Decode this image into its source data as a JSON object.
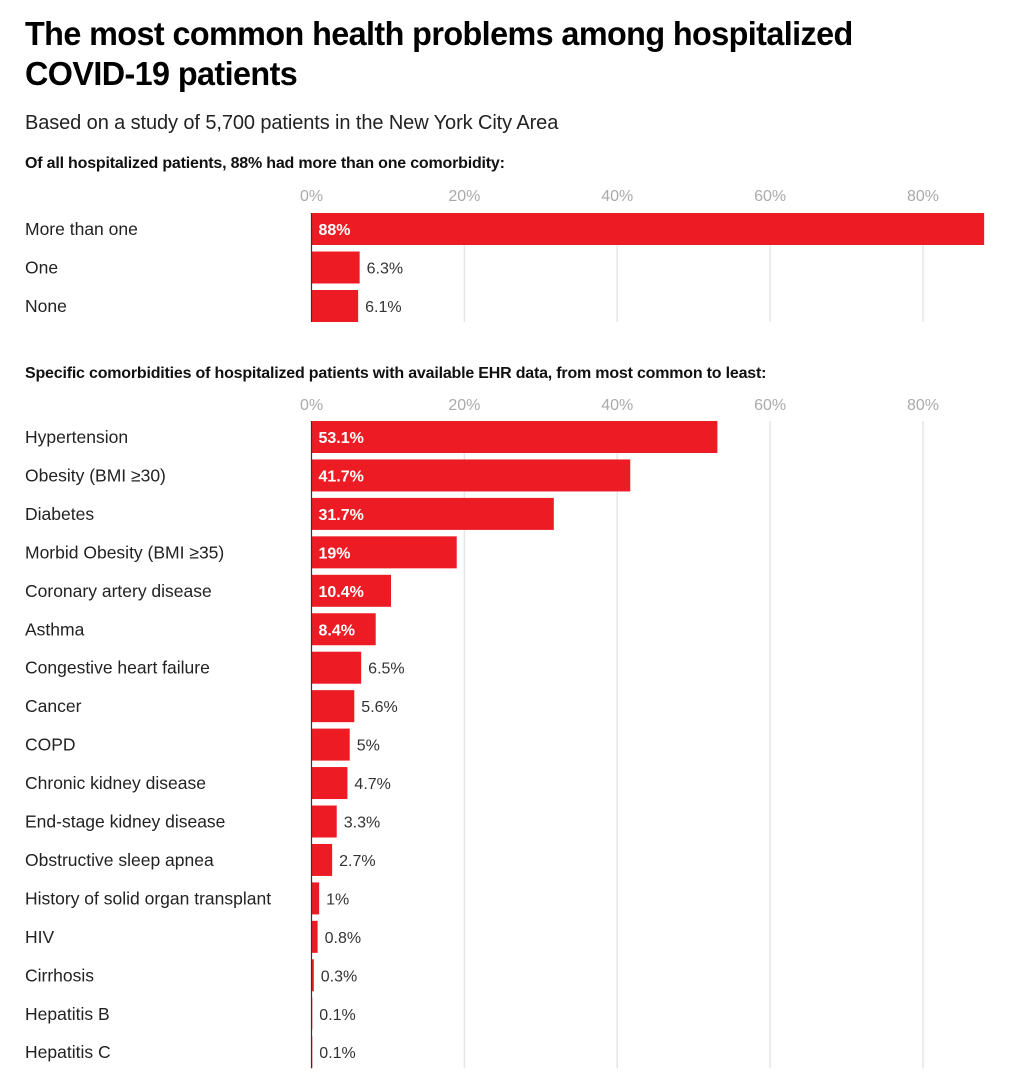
{
  "header": {
    "title": "The most common health problems among hospitalized COVID-19 patients",
    "subtitle": "Based on a study of 5,700 patients in the New York City Area"
  },
  "colors": {
    "bar": "#ED1C24",
    "grid": "#e6e6e6",
    "axis": "#333333",
    "tick": "#aaaaaa"
  },
  "chart_data": [
    {
      "type": "bar",
      "orientation": "horizontal",
      "title": "Of all hospitalized patients, 88% had more than one comorbidity:",
      "xlabel": "",
      "ylabel": "",
      "xlim": [
        0,
        88
      ],
      "xticks": [
        0,
        20,
        40,
        60,
        80
      ],
      "xtick_labels": [
        "0%",
        "20%",
        "40%",
        "60%",
        "80%"
      ],
      "grid": true,
      "categories": [
        "More than one",
        "One",
        "None"
      ],
      "values": [
        88,
        6.3,
        6.1
      ],
      "value_labels": [
        "88%",
        "6.3%",
        "6.1%"
      ]
    },
    {
      "type": "bar",
      "orientation": "horizontal",
      "title": "Specific comorbidities of hospitalized patients with available EHR data, from most common to least:",
      "xlabel": "",
      "ylabel": "",
      "xlim": [
        0,
        88
      ],
      "xticks": [
        0,
        20,
        40,
        60,
        80
      ],
      "xtick_labels": [
        "0%",
        "20%",
        "40%",
        "60%",
        "80%"
      ],
      "grid": true,
      "categories": [
        "Hypertension",
        "Obesity (BMI ≥30)",
        "Diabetes",
        "Morbid Obesity (BMI ≥35)",
        "Coronary artery disease",
        "Asthma",
        "Congestive heart failure",
        "Cancer",
        "COPD",
        "Chronic kidney disease",
        "End-stage kidney disease",
        "Obstructive sleep apnea",
        "History of solid organ transplant",
        "HIV",
        "Cirrhosis",
        "Hepatitis B",
        "Hepatitis C"
      ],
      "values": [
        53.1,
        41.7,
        31.7,
        19,
        10.4,
        8.4,
        6.5,
        5.6,
        5,
        4.7,
        3.3,
        2.7,
        1,
        0.8,
        0.3,
        0.1,
        0.1
      ],
      "value_labels": [
        "53.1%",
        "41.7%",
        "31.7%",
        "19%",
        "10.4%",
        "8.4%",
        "6.5%",
        "5.6%",
        "5%",
        "4.7%",
        "3.3%",
        "2.7%",
        "1%",
        "0.8%",
        "0.3%",
        "0.1%",
        "0.1%"
      ]
    }
  ]
}
